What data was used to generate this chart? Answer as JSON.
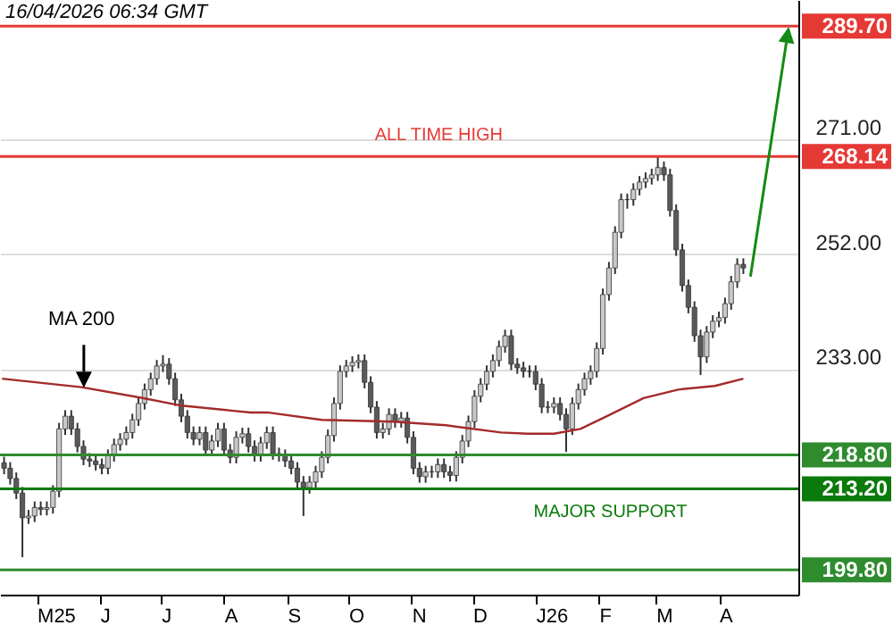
{
  "chart_data": {
    "type": "candlestick",
    "x": [
      "2025-04-15",
      "2025-04-18",
      "2025-04-21",
      "2025-04-24",
      "2025-04-27",
      "2025-04-30",
      "2025-05-03",
      "2025-05-06",
      "2025-05-09",
      "2025-05-12",
      "2025-05-15",
      "2025-05-18",
      "2025-05-21",
      "2025-05-24",
      "2025-05-27",
      "2025-05-30",
      "2025-06-02",
      "2025-06-05",
      "2025-06-08",
      "2025-06-11",
      "2025-06-14",
      "2025-06-17",
      "2025-06-20",
      "2025-06-23",
      "2025-06-26",
      "2025-06-29",
      "2025-07-02",
      "2025-07-05",
      "2025-07-08",
      "2025-07-11",
      "2025-07-14",
      "2025-07-17",
      "2025-07-20",
      "2025-07-23",
      "2025-07-26",
      "2025-07-29",
      "2025-08-01",
      "2025-08-04",
      "2025-08-07",
      "2025-08-10",
      "2025-08-13",
      "2025-08-16",
      "2025-08-19",
      "2025-08-22",
      "2025-08-25",
      "2025-08-28",
      "2025-08-31",
      "2025-09-03",
      "2025-09-06",
      "2025-09-09",
      "2025-09-12",
      "2025-09-15",
      "2025-09-18",
      "2025-09-21",
      "2025-09-24",
      "2025-09-27",
      "2025-09-30",
      "2025-10-03",
      "2025-10-06",
      "2025-10-09",
      "2025-10-12",
      "2025-10-15",
      "2025-10-18",
      "2025-10-21",
      "2025-10-24",
      "2025-10-27",
      "2025-10-30",
      "2025-11-02",
      "2025-11-05",
      "2025-11-08",
      "2025-11-11",
      "2025-11-14",
      "2025-11-17",
      "2025-11-20",
      "2025-11-23",
      "2025-11-26",
      "2025-11-29",
      "2025-12-02",
      "2025-12-05",
      "2025-12-08",
      "2025-12-11",
      "2025-12-14",
      "2025-12-17",
      "2025-12-20",
      "2025-12-23",
      "2025-12-26",
      "2025-12-29",
      "2026-01-01",
      "2026-01-04",
      "2026-01-07",
      "2026-01-10",
      "2026-01-13",
      "2026-01-16",
      "2026-01-19",
      "2026-01-22",
      "2026-01-25",
      "2026-01-28",
      "2026-01-31",
      "2026-02-03",
      "2026-02-06",
      "2026-02-09",
      "2026-02-12",
      "2026-02-15",
      "2026-02-18",
      "2026-02-21",
      "2026-02-24",
      "2026-02-27",
      "2026-03-02",
      "2026-03-05",
      "2026-03-08",
      "2026-03-11",
      "2026-03-14",
      "2026-03-17",
      "2026-03-20",
      "2026-03-23",
      "2026-03-26",
      "2026-03-29",
      "2026-04-01",
      "2026-04-04",
      "2026-04-07",
      "2026-04-10",
      "2026-04-13"
    ],
    "ohlc": [
      [
        217.5,
        218.5,
        215.6,
        216.6
      ],
      [
        216.6,
        217.6,
        213.9,
        214.9
      ],
      [
        214.9,
        215.9,
        211.5,
        212.5
      ],
      [
        212.5,
        213.5,
        201.9,
        208.4
      ],
      [
        208.4,
        209.7,
        207.4,
        208.7
      ],
      [
        208.7,
        211.1,
        207.7,
        210.1
      ],
      [
        210.1,
        211.1,
        208.8,
        209.8
      ],
      [
        209.8,
        211.1,
        208.8,
        210.1
      ],
      [
        210.1,
        213.8,
        209.1,
        212.8
      ],
      [
        212.8,
        224.1,
        211.8,
        223.1
      ],
      [
        223.1,
        226.2,
        222.1,
        225.2
      ],
      [
        225.2,
        226.2,
        222.1,
        223.1
      ],
      [
        223.1,
        224.1,
        219.2,
        220.2
      ],
      [
        220.2,
        221.2,
        217.1,
        218.1
      ],
      [
        218.1,
        219.1,
        216.8,
        217.8
      ],
      [
        217.8,
        218.8,
        216.2,
        217.2
      ],
      [
        217.2,
        218.2,
        215.6,
        216.6
      ],
      [
        216.6,
        219.7,
        215.6,
        218.7
      ],
      [
        218.7,
        221.5,
        217.7,
        220.5
      ],
      [
        220.5,
        222.4,
        219.5,
        221.4
      ],
      [
        221.4,
        223.5,
        220.4,
        222.5
      ],
      [
        222.5,
        225.6,
        221.5,
        224.6
      ],
      [
        224.6,
        228.3,
        223.6,
        227.3
      ],
      [
        227.3,
        230.6,
        226.3,
        229.6
      ],
      [
        229.6,
        232.4,
        228.6,
        231.4
      ],
      [
        231.4,
        234.5,
        230.4,
        233.5
      ],
      [
        233.5,
        235.3,
        232.5,
        233.8
      ],
      [
        233.8,
        234.8,
        230.4,
        231.4
      ],
      [
        231.4,
        232.4,
        226.9,
        227.9
      ],
      [
        227.9,
        228.9,
        224.2,
        225.2
      ],
      [
        225.2,
        226.2,
        221.5,
        222.5
      ],
      [
        222.5,
        223.5,
        220.4,
        221.4
      ],
      [
        221.4,
        223.5,
        220.4,
        222.5
      ],
      [
        222.5,
        223.5,
        218.6,
        219.6
      ],
      [
        219.6,
        222.1,
        218.6,
        221.1
      ],
      [
        221.1,
        224.1,
        220.1,
        223.1
      ],
      [
        223.1,
        224.1,
        218.6,
        219.6
      ],
      [
        219.6,
        220.6,
        217.4,
        218.4
      ],
      [
        218.4,
        222.7,
        217.4,
        221.7
      ],
      [
        221.7,
        223.3,
        220.7,
        222.3
      ],
      [
        222.3,
        223.3,
        219.2,
        220.2
      ],
      [
        220.2,
        221.2,
        217.7,
        218.7
      ],
      [
        218.7,
        221.8,
        217.7,
        220.8
      ],
      [
        220.8,
        223.5,
        219.8,
        222.5
      ],
      [
        222.5,
        223.5,
        218.0,
        219.0
      ],
      [
        219.0,
        220.0,
        217.7,
        218.7
      ],
      [
        218.7,
        219.7,
        216.8,
        217.8
      ],
      [
        217.8,
        218.8,
        215.6,
        216.6
      ],
      [
        216.6,
        217.6,
        213.3,
        214.3
      ],
      [
        214.3,
        215.3,
        208.7,
        213.4
      ],
      [
        213.4,
        215.3,
        212.4,
        214.3
      ],
      [
        214.3,
        217.0,
        213.3,
        216.0
      ],
      [
        216.0,
        219.4,
        215.0,
        218.4
      ],
      [
        218.4,
        223.0,
        217.4,
        222.0
      ],
      [
        222.0,
        228.3,
        221.0,
        227.3
      ],
      [
        227.3,
        233.6,
        226.3,
        232.6
      ],
      [
        232.6,
        234.5,
        231.6,
        233.5
      ],
      [
        233.5,
        235.1,
        232.5,
        234.1
      ],
      [
        234.1,
        235.4,
        233.1,
        234.4
      ],
      [
        234.4,
        235.4,
        229.8,
        230.8
      ],
      [
        230.8,
        231.8,
        225.7,
        226.7
      ],
      [
        226.7,
        227.7,
        221.5,
        222.5
      ],
      [
        222.5,
        224.1,
        221.5,
        223.1
      ],
      [
        223.1,
        226.5,
        222.1,
        225.5
      ],
      [
        225.5,
        226.5,
        223.3,
        224.3
      ],
      [
        224.3,
        225.9,
        223.3,
        224.9
      ],
      [
        224.9,
        225.9,
        220.7,
        221.7
      ],
      [
        221.7,
        222.7,
        215.6,
        216.6
      ],
      [
        216.6,
        217.6,
        214.2,
        215.2
      ],
      [
        215.2,
        217.0,
        214.2,
        216.0
      ],
      [
        216.0,
        217.0,
        215.0,
        216.0
      ],
      [
        216.0,
        218.2,
        215.0,
        217.2
      ],
      [
        217.2,
        218.2,
        215.0,
        216.0
      ],
      [
        216.0,
        217.0,
        214.4,
        215.4
      ],
      [
        215.4,
        219.4,
        214.4,
        218.4
      ],
      [
        218.4,
        222.1,
        217.4,
        221.1
      ],
      [
        221.1,
        225.3,
        220.1,
        224.3
      ],
      [
        224.3,
        229.5,
        223.3,
        228.5
      ],
      [
        228.5,
        231.5,
        227.5,
        230.5
      ],
      [
        230.5,
        233.6,
        229.5,
        232.6
      ],
      [
        232.6,
        235.4,
        231.6,
        234.4
      ],
      [
        234.4,
        237.7,
        233.4,
        236.7
      ],
      [
        236.7,
        239.5,
        235.7,
        238.5
      ],
      [
        238.5,
        239.5,
        232.8,
        233.8
      ],
      [
        233.8,
        234.8,
        232.2,
        233.2
      ],
      [
        233.2,
        234.2,
        231.6,
        232.6
      ],
      [
        232.6,
        233.6,
        231.6,
        232.6
      ],
      [
        232.6,
        233.6,
        229.5,
        230.5
      ],
      [
        230.5,
        231.5,
        225.7,
        226.7
      ],
      [
        226.7,
        227.7,
        225.7,
        226.7
      ],
      [
        226.7,
        228.3,
        225.7,
        227.3
      ],
      [
        227.3,
        228.3,
        224.5,
        225.5
      ],
      [
        225.5,
        226.5,
        219.3,
        223.1
      ],
      [
        223.1,
        228.3,
        222.1,
        227.3
      ],
      [
        227.3,
        230.6,
        226.3,
        229.6
      ],
      [
        229.6,
        232.4,
        228.6,
        231.4
      ],
      [
        231.4,
        233.6,
        230.4,
        232.6
      ],
      [
        232.6,
        237.4,
        231.6,
        236.4
      ],
      [
        236.4,
        246.3,
        235.4,
        245.3
      ],
      [
        245.3,
        250.7,
        244.3,
        249.7
      ],
      [
        249.7,
        256.6,
        248.7,
        255.6
      ],
      [
        255.6,
        262.0,
        254.6,
        261.0
      ],
      [
        261.0,
        262.0,
        259.5,
        261.0
      ],
      [
        261.0,
        263.7,
        260.0,
        262.7
      ],
      [
        262.7,
        264.9,
        261.7,
        263.9
      ],
      [
        263.9,
        265.5,
        262.9,
        264.5
      ],
      [
        264.5,
        266.1,
        263.5,
        265.1
      ],
      [
        265.1,
        268.1,
        264.1,
        266.3
      ],
      [
        266.3,
        267.3,
        264.1,
        265.1
      ],
      [
        265.1,
        266.1,
        258.2,
        259.2
      ],
      [
        259.2,
        260.2,
        251.7,
        252.7
      ],
      [
        252.7,
        253.7,
        245.8,
        246.8
      ],
      [
        246.8,
        247.8,
        242.2,
        243.2
      ],
      [
        243.2,
        244.2,
        237.5,
        238.5
      ],
      [
        238.5,
        239.5,
        232.0,
        235.0
      ],
      [
        235.0,
        240.1,
        234.0,
        239.1
      ],
      [
        239.1,
        241.9,
        238.1,
        240.9
      ],
      [
        240.9,
        242.5,
        239.9,
        241.5
      ],
      [
        241.5,
        244.8,
        240.5,
        243.8
      ],
      [
        243.8,
        248.4,
        242.8,
        247.4
      ],
      [
        247.4,
        251.3,
        246.4,
        250.3
      ],
      [
        250.3,
        251.3,
        248.7,
        249.7
      ]
    ],
    "color": "#333333",
    "series": [
      {
        "name": "MA 200",
        "type": "line",
        "color": "#a52a2a",
        "x": [
          "2025-04-14",
          "2025-05-23",
          "2025-06-22",
          "2025-07-10",
          "2025-08-14",
          "2025-08-23",
          "2025-09-18",
          "2025-10-23",
          "2025-11-18",
          "2025-12-15",
          "2025-12-28",
          "2026-01-10",
          "2026-01-23",
          "2026-02-05",
          "2026-02-23",
          "2026-03-12",
          "2026-03-30",
          "2026-04-13"
        ],
        "values": [
          231.4,
          230.0,
          228.2,
          227.0,
          225.8,
          225.8,
          224.6,
          224.3,
          223.7,
          222.5,
          222.3,
          222.3,
          223.1,
          225.2,
          228.2,
          229.6,
          230.2,
          231.4
        ]
      }
    ],
    "xlim": [
      "2025-04-13",
      "2026-05-10"
    ],
    "xticks": [
      {
        "value": "2025-05-01",
        "label": "M25"
      },
      {
        "value": "2025-06-01",
        "label": "J"
      },
      {
        "value": "2025-07-01",
        "label": "J"
      },
      {
        "value": "2025-08-01",
        "label": "A"
      },
      {
        "value": "2025-09-01",
        "label": "S"
      },
      {
        "value": "2025-10-01",
        "label": "O"
      },
      {
        "value": "2025-11-01",
        "label": "N"
      },
      {
        "value": "2025-12-01",
        "label": "D"
      },
      {
        "value": "2026-01-01",
        "label": "J26"
      },
      {
        "value": "2026-02-01",
        "label": "F"
      },
      {
        "value": "2026-03-01",
        "label": "M"
      },
      {
        "value": "2026-04-01",
        "label": "A"
      }
    ],
    "ylim": [
      195.7,
      294.0
    ],
    "yticks": [
      {
        "value": 233,
        "label": "233.00"
      },
      {
        "value": 252,
        "label": "252.00"
      },
      {
        "value": 271,
        "label": "271.00"
      }
    ],
    "grid": "y",
    "ref_lines": [
      {
        "axis": "y",
        "value": 289.7,
        "label": "289.70",
        "color": "#e53935"
      },
      {
        "axis": "y",
        "value": 268.14,
        "label": "268.14",
        "color": "#e53935"
      },
      {
        "axis": "y",
        "value": 218.8,
        "label": "218.80",
        "color": "#2e8b2e"
      },
      {
        "axis": "y",
        "value": 213.2,
        "label": "213.20",
        "color": "#0a7a0a"
      },
      {
        "axis": "y",
        "value": 199.8,
        "label": "199.80",
        "color": "#2e8b2e"
      }
    ],
    "annotations": [
      "16/04/2026 06:34 GMT",
      {
        "text": "ALL TIME HIGH",
        "x": "2025-10-14",
        "y": 268.14
      },
      {
        "text": "MAJOR SUPPORT",
        "x": "2025-12-31",
        "y": 213.2
      }
    ]
  }
}
